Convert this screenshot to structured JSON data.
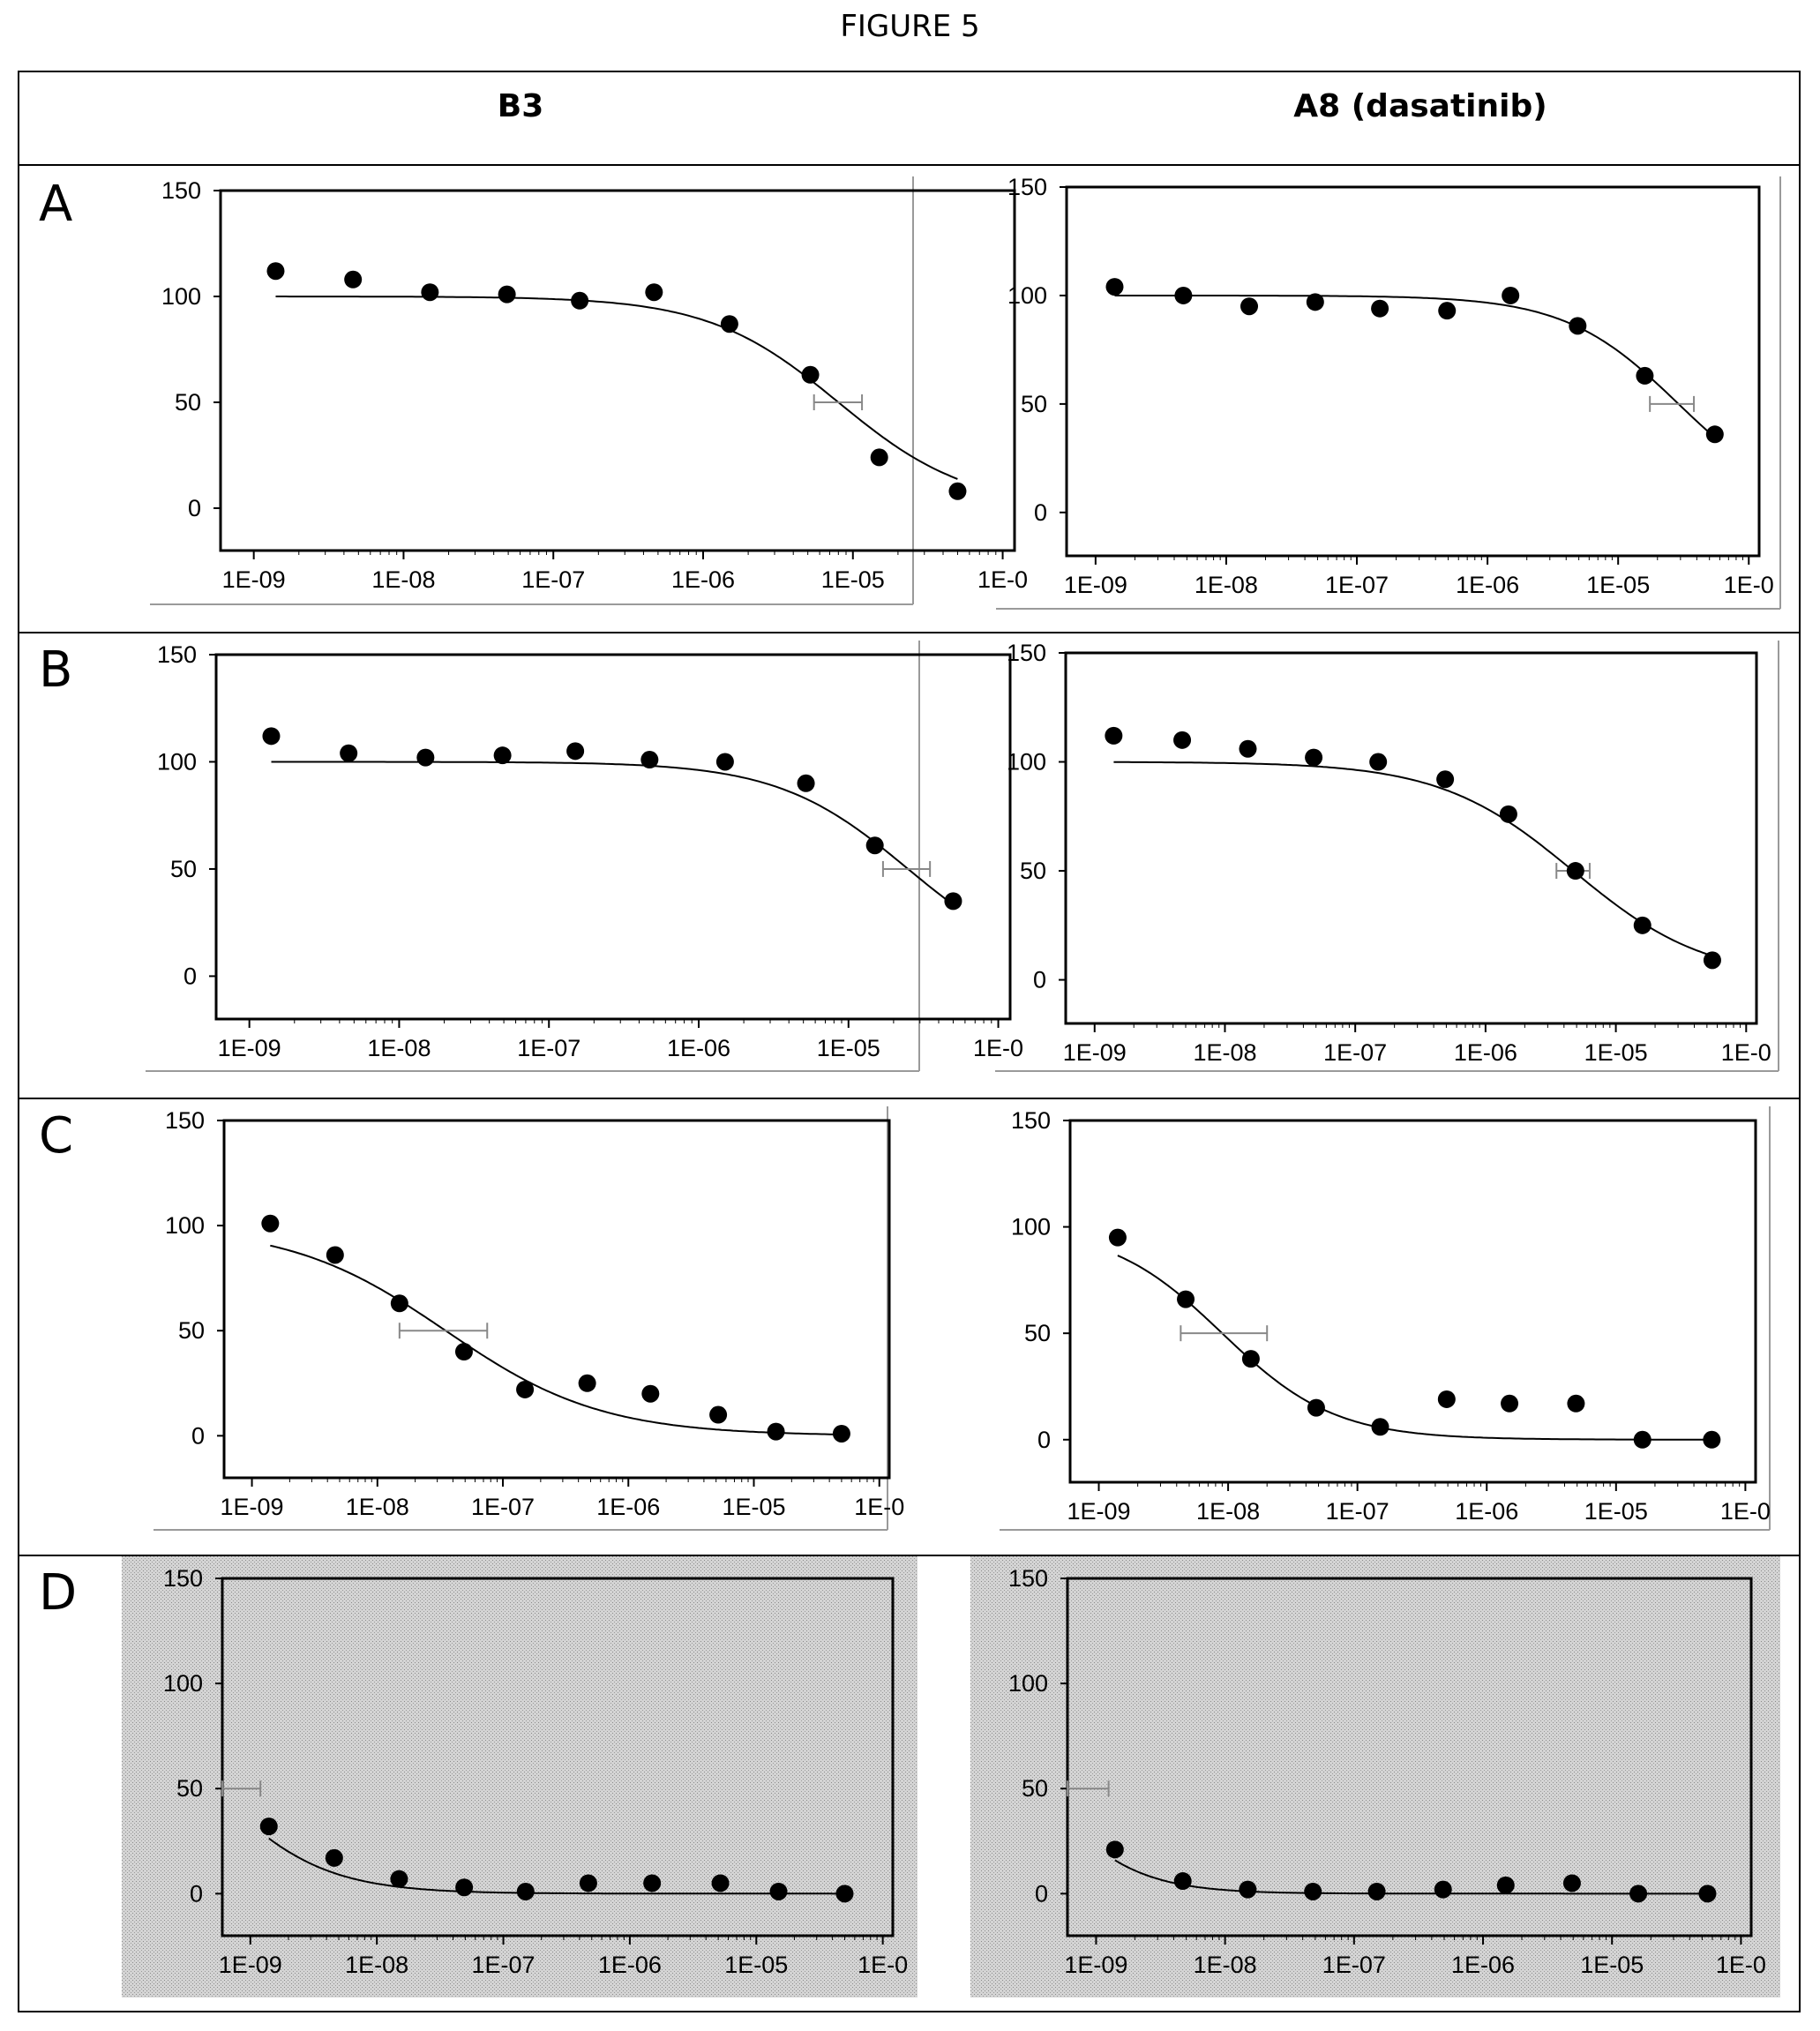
{
  "figure_title": "FIGURE 5",
  "columns": [
    "B3",
    "A8 (dasatinib)"
  ],
  "rows": [
    "A",
    "B",
    "C",
    "D"
  ],
  "axis": {
    "y_ticks": [
      "150",
      "100",
      "50",
      "0"
    ],
    "x_ticks": [
      "1E-09",
      "1E-08",
      "1E-07",
      "1E-06",
      "1E-05",
      "1E-0"
    ]
  },
  "chart_data": [
    {
      "panel": "A",
      "compound": "B3",
      "type": "scatter",
      "xscale": "log",
      "xlim": [
        6e-10,
        0.00012
      ],
      "ylim": [
        -20,
        150
      ],
      "background": "white",
      "x": [
        1.4e-09,
        4.6e-09,
        1.5e-08,
        4.9e-08,
        1.5e-07,
        4.7e-07,
        1.5e-06,
        5.2e-06,
        1.5e-05,
        5e-05
      ],
      "y": [
        112,
        108,
        102,
        101,
        98,
        102,
        87,
        63,
        24,
        8
      ],
      "fit": {
        "top": 100,
        "bottom": 0,
        "ic50": 8e-06,
        "hill": 1.0
      },
      "ic50_ci": [
        5.5e-06,
        1.15e-05
      ]
    },
    {
      "panel": "A",
      "compound": "A8 (dasatinib)",
      "type": "scatter",
      "xscale": "log",
      "xlim": [
        6e-10,
        0.00012
      ],
      "ylim": [
        -20,
        150
      ],
      "background": "white",
      "x": [
        1.4e-09,
        4.7e-09,
        1.5e-08,
        4.8e-08,
        1.5e-07,
        4.9e-07,
        1.5e-06,
        4.9e-06,
        1.6e-05,
        5.5e-05
      ],
      "y": [
        104,
        100,
        95,
        97,
        94,
        93,
        100,
        86,
        63,
        36
      ],
      "fit": {
        "top": 100,
        "bottom": 0,
        "ic50": 2.9e-05,
        "hill": 1.0
      },
      "ic50_ci": [
        1.75e-05,
        3.8e-05
      ]
    },
    {
      "panel": "B",
      "compound": "B3",
      "type": "scatter",
      "xscale": "log",
      "xlim": [
        6e-10,
        0.00012
      ],
      "ylim": [
        -20,
        150
      ],
      "background": "white",
      "x": [
        1.4e-09,
        4.6e-09,
        1.5e-08,
        4.9e-08,
        1.5e-07,
        4.7e-07,
        1.5e-06,
        5.2e-06,
        1.5e-05,
        5e-05
      ],
      "y": [
        112,
        104,
        102,
        103,
        105,
        101,
        100,
        90,
        61,
        35
      ],
      "fit": {
        "top": 100,
        "bottom": 0,
        "ic50": 2.5e-05,
        "hill": 1.0
      },
      "ic50_ci": [
        1.7e-05,
        3.5e-05
      ]
    },
    {
      "panel": "B",
      "compound": "A8 (dasatinib)",
      "type": "scatter",
      "xscale": "log",
      "xlim": [
        6e-10,
        0.00012
      ],
      "ylim": [
        -20,
        150
      ],
      "background": "white",
      "x": [
        1.4e-09,
        4.7e-09,
        1.5e-08,
        4.8e-08,
        1.5e-07,
        4.9e-07,
        1.5e-06,
        4.9e-06,
        1.6e-05,
        5.5e-05
      ],
      "y": [
        112,
        110,
        106,
        102,
        100,
        92,
        76,
        50,
        25,
        9
      ],
      "fit": {
        "top": 100,
        "bottom": 0,
        "ic50": 4.7e-06,
        "hill": 0.85
      },
      "ic50_ci": [
        3.5e-06,
        6.3e-06
      ]
    },
    {
      "panel": "C",
      "compound": "B3",
      "type": "scatter",
      "xscale": "log",
      "xlim": [
        6e-10,
        0.00012
      ],
      "ylim": [
        -20,
        150
      ],
      "background": "white",
      "x": [
        1.4e-09,
        4.6e-09,
        1.5e-08,
        4.9e-08,
        1.5e-07,
        4.7e-07,
        1.5e-06,
        5.2e-06,
        1.5e-05,
        5e-05
      ],
      "y": [
        101,
        86,
        63,
        40,
        22,
        25,
        20,
        10,
        2,
        1
      ],
      "fit": {
        "top": 100,
        "bottom": 0,
        "ic50": 3.5e-08,
        "hill": 0.7
      },
      "ic50_ci": [
        1.5e-08,
        7.5e-08
      ]
    },
    {
      "panel": "C",
      "compound": "A8 (dasatinib)",
      "type": "scatter",
      "xscale": "log",
      "xlim": [
        6e-10,
        0.00012
      ],
      "ylim": [
        -20,
        150
      ],
      "background": "white",
      "x": [
        1.4e-09,
        4.7e-09,
        1.5e-08,
        4.8e-08,
        1.5e-07,
        4.9e-07,
        1.5e-06,
        4.9e-06,
        1.6e-05,
        5.5e-05
      ],
      "y": [
        95,
        66,
        38,
        15,
        6,
        19,
        17,
        17,
        0,
        0
      ],
      "fit": {
        "top": 100,
        "bottom": 0,
        "ic50": 9e-09,
        "hill": 1.0
      },
      "ic50_ci": [
        4.3e-09,
        2e-08
      ]
    },
    {
      "panel": "D",
      "compound": "B3",
      "type": "scatter",
      "xscale": "log",
      "xlim": [
        6e-10,
        0.00012
      ],
      "ylim": [
        -20,
        150
      ],
      "background": "stippled",
      "x": [
        1.4e-09,
        4.6e-09,
        1.5e-08,
        4.9e-08,
        1.5e-07,
        4.7e-07,
        1.5e-06,
        5.2e-06,
        1.5e-05,
        5e-05
      ],
      "y": [
        32,
        17,
        7,
        3,
        1,
        5,
        5,
        5,
        1,
        0
      ],
      "fit": {
        "top": 100,
        "bottom": 0,
        "ic50": 5e-10,
        "hill": 1.0
      },
      "ic50_ci": [
        6e-10,
        1.2e-09
      ]
    },
    {
      "panel": "D",
      "compound": "A8 (dasatinib)",
      "type": "scatter",
      "xscale": "log",
      "xlim": [
        6e-10,
        0.00012
      ],
      "ylim": [
        -20,
        150
      ],
      "background": "stippled",
      "x": [
        1.4e-09,
        4.7e-09,
        1.5e-08,
        4.8e-08,
        1.5e-07,
        4.9e-07,
        1.5e-06,
        4.9e-06,
        1.6e-05,
        5.5e-05
      ],
      "y": [
        21,
        6,
        2,
        1,
        1,
        2,
        4,
        5,
        0,
        0
      ],
      "fit": {
        "top": 100,
        "bottom": 0,
        "ic50": 3.5e-10,
        "hill": 1.2
      },
      "ic50_ci": [
        6e-10,
        1.25e-09
      ]
    }
  ]
}
